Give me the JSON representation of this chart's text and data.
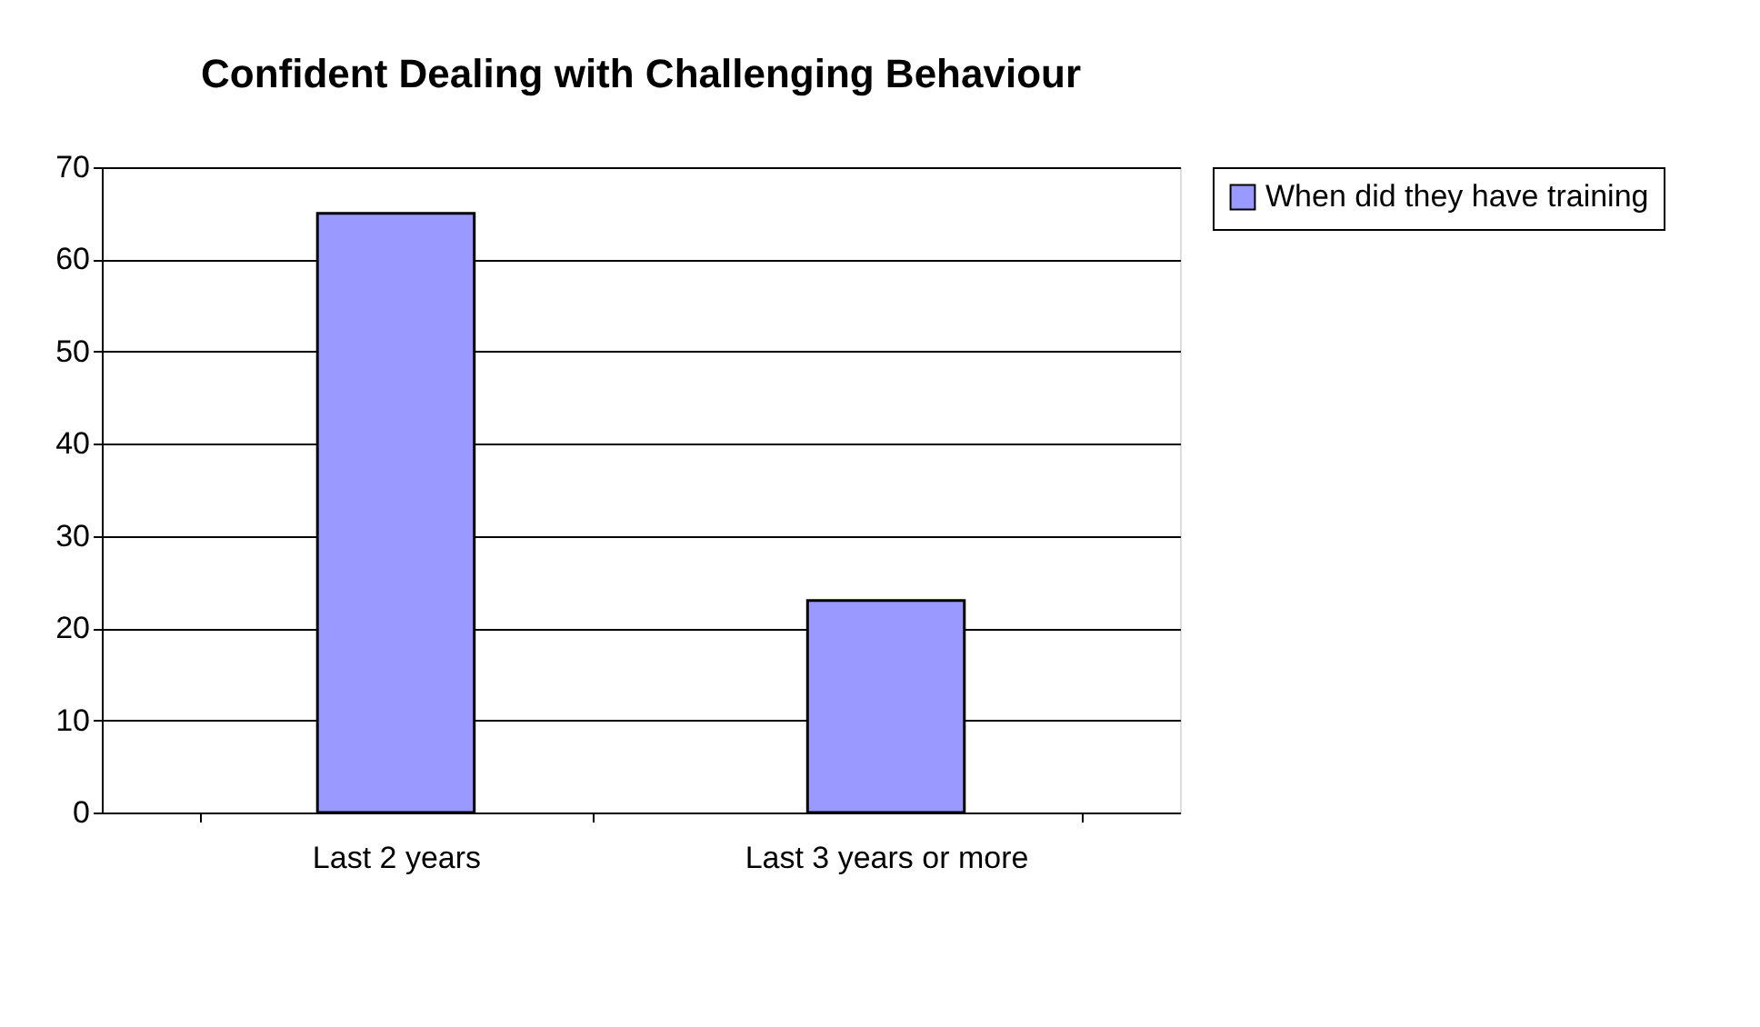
{
  "chart_data": {
    "type": "bar",
    "title": "Confident Dealing with Challenging Behaviour",
    "categories": [
      "Last 2 years",
      "Last 3 years or more"
    ],
    "series": [
      {
        "name": "When did they have training",
        "color": "#9999ff",
        "values": [
          65,
          23
        ]
      }
    ],
    "ylim": [
      0,
      70
    ],
    "yticks": [
      0,
      10,
      20,
      30,
      40,
      50,
      60,
      70
    ],
    "grid": "y",
    "legend": "right"
  }
}
